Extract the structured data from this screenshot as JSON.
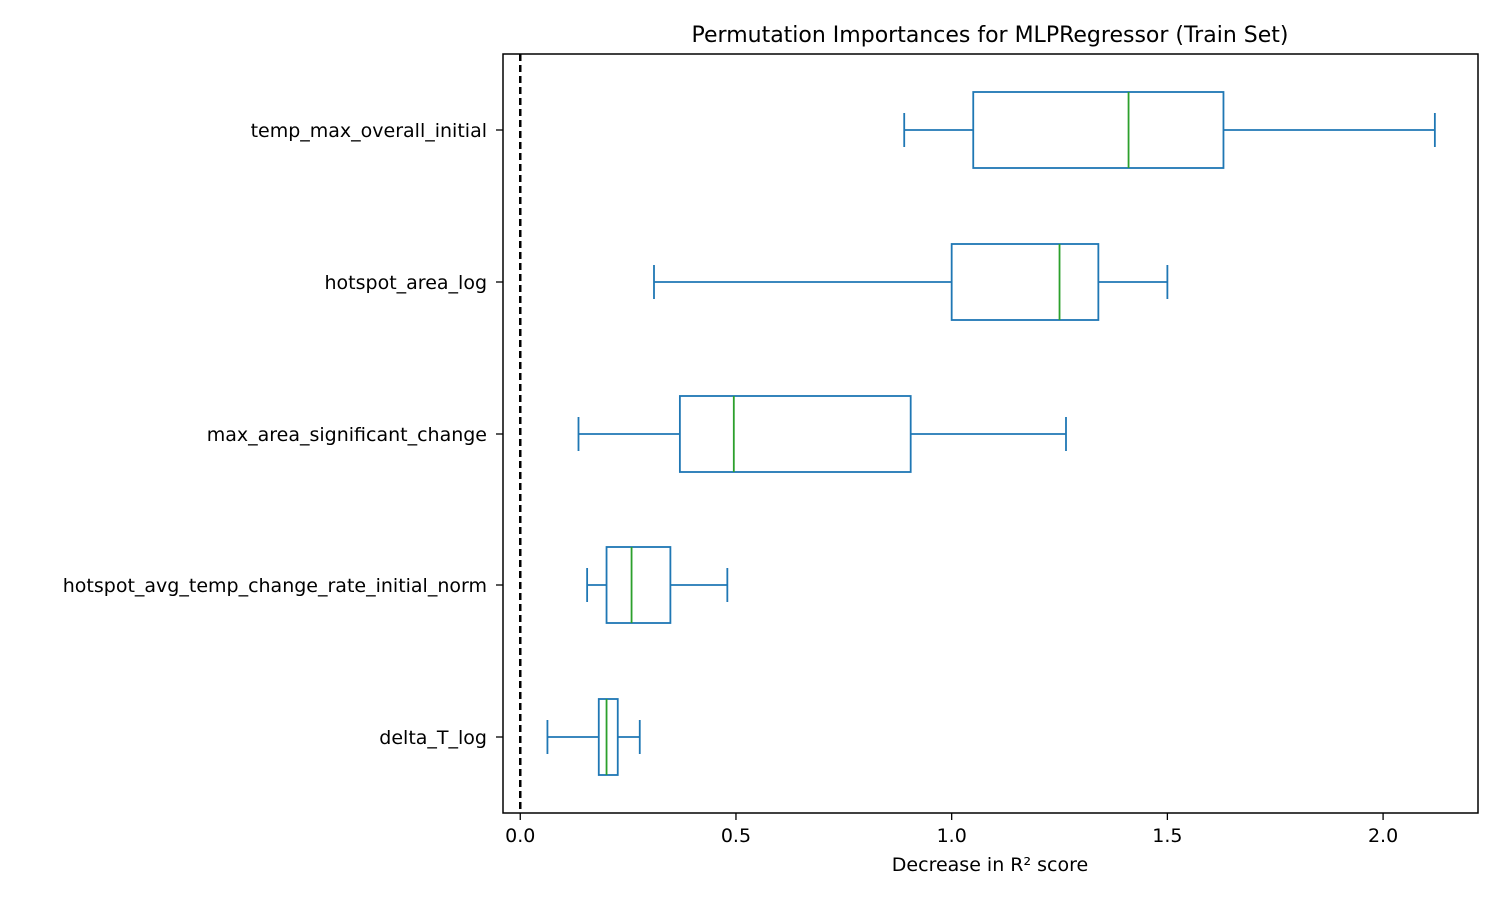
{
  "chart_data": {
    "type": "box",
    "orientation": "horizontal",
    "title": "Permutation Importances for MLPRegressor (Train Set)",
    "xlabel": "Decrease in R² score",
    "ylabel": "",
    "xlim": [
      -0.04,
      2.22
    ],
    "xticks": [
      0.0,
      0.5,
      1.0,
      1.5,
      2.0
    ],
    "xtick_labels": [
      "0.0",
      "0.5",
      "1.0",
      "1.5",
      "2.0"
    ],
    "reference_line": {
      "x": 0.0,
      "style": "dashed",
      "color": "#000000"
    },
    "grid": false,
    "colors": {
      "box": "#1f77b4",
      "median": "#2ca02c"
    },
    "categories": [
      "temp_max_overall_initial",
      "hotspot_area_log",
      "max_area_significant_change",
      "hotspot_avg_temp_change_rate_initial_norm",
      "delta_T_log"
    ],
    "boxes": [
      {
        "label": "temp_max_overall_initial",
        "whisker_low": 0.89,
        "q1": 1.05,
        "median": 1.41,
        "q3": 1.63,
        "whisker_high": 2.12
      },
      {
        "label": "hotspot_area_log",
        "whisker_low": 0.31,
        "q1": 1.0,
        "median": 1.25,
        "q3": 1.34,
        "whisker_high": 1.5
      },
      {
        "label": "max_area_significant_change",
        "whisker_low": 0.135,
        "q1": 0.37,
        "median": 0.495,
        "q3": 0.905,
        "whisker_high": 1.265
      },
      {
        "label": "hotspot_avg_temp_change_rate_initial_norm",
        "whisker_low": 0.155,
        "q1": 0.2,
        "median": 0.258,
        "q3": 0.348,
        "whisker_high": 0.48
      },
      {
        "label": "delta_T_log",
        "whisker_low": 0.063,
        "q1": 0.182,
        "median": 0.2,
        "q3": 0.226,
        "whisker_high": 0.277
      }
    ]
  }
}
